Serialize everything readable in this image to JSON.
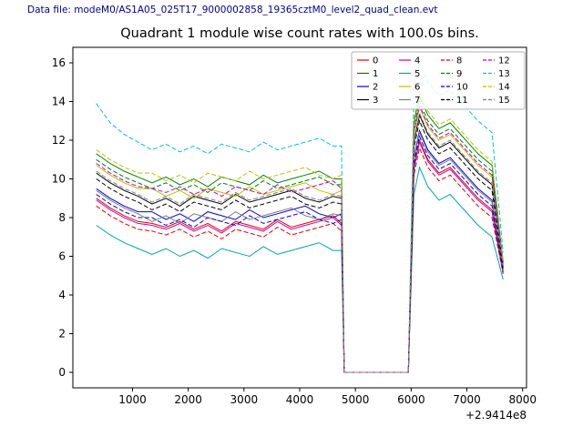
{
  "header": {
    "data_file_label": "Data file: modeM0/AS1A05_025T17_9000002858_19365cztM0_level2_quad_clean.evt",
    "color": "#00008b"
  },
  "chart_data": {
    "type": "line",
    "title": "Quadrant 1 module wise count rates with 100.0s bins.",
    "xlabel": "",
    "ylabel": "",
    "x_offset_text": "+2.9414e8",
    "xlim": [
      -70,
      8070
    ],
    "ylim": [
      -0.8,
      16.8
    ],
    "xticks": [
      1000,
      2000,
      3000,
      4000,
      5000,
      6000,
      7000,
      8000
    ],
    "yticks": [
      0,
      2,
      4,
      6,
      8,
      10,
      12,
      14,
      16
    ],
    "grid": false,
    "legend_position": "upper right",
    "legend_columns": 4,
    "x": [
      350,
      600,
      850,
      1100,
      1350,
      1600,
      1850,
      2100,
      2350,
      2600,
      2850,
      3100,
      3350,
      3600,
      3850,
      4100,
      4350,
      4600,
      4750,
      4800,
      5950,
      6050,
      6150,
      6300,
      6500,
      6700,
      6950,
      7200,
      7450,
      7650
    ],
    "series": [
      {
        "name": "0",
        "color": "#e60000",
        "dash": false,
        "values": [
          9.0,
          8.5,
          8.1,
          7.8,
          7.7,
          7.5,
          7.8,
          7.4,
          7.7,
          7.3,
          7.8,
          7.6,
          7.4,
          7.9,
          7.5,
          7.7,
          7.9,
          8.1,
          7.7,
          0,
          0,
          10.6,
          12.0,
          11.0,
          10.3,
          10.6,
          9.8,
          9.0,
          8.4,
          5.2
        ]
      },
      {
        "name": "1",
        "color": "#007f00",
        "dash": false,
        "values": [
          11.3,
          10.8,
          10.4,
          10.1,
          9.8,
          10.1,
          9.7,
          10.0,
          9.6,
          10.1,
          9.9,
          9.7,
          10.2,
          9.8,
          10.0,
          10.2,
          10.4,
          10.0,
          10.0,
          0,
          0,
          12.9,
          14.3,
          13.3,
          12.6,
          12.9,
          12.1,
          11.3,
          10.7,
          5.7
        ]
      },
      {
        "name": "2",
        "color": "#0000dd",
        "dash": false,
        "values": [
          9.5,
          9.0,
          8.6,
          8.3,
          8.3,
          7.9,
          8.2,
          7.8,
          8.3,
          8.1,
          7.9,
          8.4,
          8.0,
          8.2,
          8.4,
          8.6,
          8.2,
          8.0,
          8.2,
          0,
          0,
          11.1,
          12.5,
          11.5,
          10.8,
          11.1,
          10.3,
          9.5,
          8.9,
          5.3
        ]
      },
      {
        "name": "3",
        "color": "#000000",
        "dash": false,
        "values": [
          10.3,
          9.8,
          9.4,
          9.1,
          8.7,
          9.0,
          8.6,
          9.1,
          8.9,
          8.7,
          9.2,
          8.8,
          9.0,
          9.2,
          9.4,
          9.0,
          8.8,
          9.1,
          9.0,
          0,
          0,
          11.9,
          13.3,
          12.3,
          11.6,
          11.9,
          11.1,
          10.3,
          9.7,
          5.5
        ]
      },
      {
        "name": "4",
        "color": "#bf00bf",
        "dash": false,
        "values": [
          8.9,
          8.4,
          8.0,
          7.7,
          7.6,
          7.4,
          7.7,
          7.3,
          7.6,
          7.2,
          7.7,
          7.5,
          7.3,
          7.8,
          7.4,
          7.6,
          7.8,
          8.0,
          7.6,
          0,
          0,
          10.5,
          11.9,
          10.9,
          10.2,
          10.5,
          9.7,
          8.9,
          8.3,
          5.1
        ]
      },
      {
        "name": "5",
        "color": "#00a5a5",
        "dash": false,
        "values": [
          7.6,
          7.1,
          6.7,
          6.4,
          6.1,
          6.4,
          6.0,
          6.3,
          5.9,
          6.4,
          6.2,
          6.0,
          6.5,
          6.1,
          6.3,
          6.5,
          6.7,
          6.3,
          6.3,
          0,
          0,
          9.2,
          10.6,
          9.6,
          8.9,
          9.2,
          8.4,
          7.6,
          7.0,
          4.8
        ]
      },
      {
        "name": "6",
        "color": "#bfbf00",
        "dash": false,
        "values": [
          10.7,
          10.2,
          9.8,
          9.5,
          9.5,
          9.1,
          9.4,
          9.0,
          9.5,
          9.3,
          9.1,
          9.6,
          9.2,
          9.4,
          9.6,
          9.8,
          9.4,
          9.2,
          9.4,
          0,
          0,
          12.3,
          13.7,
          12.7,
          12.0,
          12.3,
          11.5,
          10.7,
          10.1,
          5.6
        ]
      },
      {
        "name": "7",
        "color": "#7f7f7f",
        "dash": false,
        "values": [
          9.4,
          8.9,
          8.5,
          8.2,
          7.8,
          8.1,
          7.7,
          8.2,
          8.0,
          7.8,
          8.3,
          7.9,
          8.1,
          8.3,
          8.5,
          8.1,
          7.9,
          8.2,
          8.1,
          0,
          0,
          11.0,
          12.4,
          11.4,
          10.7,
          11.0,
          10.2,
          9.4,
          8.8,
          5.3
        ]
      },
      {
        "name": "8",
        "color": "#e60000",
        "dash": true,
        "values": [
          8.6,
          8.1,
          7.7,
          7.4,
          7.3,
          7.1,
          7.4,
          7.0,
          7.3,
          6.9,
          7.4,
          7.2,
          7.0,
          7.5,
          7.1,
          7.3,
          7.5,
          7.7,
          7.3,
          0,
          0,
          10.2,
          11.6,
          10.6,
          9.9,
          10.2,
          9.4,
          8.6,
          8.0,
          5.1
        ]
      },
      {
        "name": "9",
        "color": "#007f00",
        "dash": true,
        "values": [
          11.0,
          10.5,
          10.1,
          9.8,
          9.5,
          9.8,
          9.4,
          9.7,
          9.3,
          9.8,
          9.6,
          9.4,
          9.9,
          9.5,
          9.7,
          9.9,
          10.1,
          9.7,
          9.7,
          0,
          0,
          12.6,
          14.0,
          13.0,
          12.3,
          12.6,
          11.8,
          11.0,
          10.4,
          5.7
        ]
      },
      {
        "name": "10",
        "color": "#0000dd",
        "dash": true,
        "values": [
          9.2,
          8.7,
          8.3,
          8.0,
          8.0,
          7.6,
          7.9,
          7.5,
          8.0,
          7.8,
          7.6,
          8.1,
          7.7,
          7.9,
          8.1,
          8.3,
          7.9,
          7.7,
          7.9,
          0,
          0,
          10.8,
          12.2,
          11.2,
          10.5,
          10.8,
          10.0,
          9.2,
          8.6,
          5.2
        ]
      },
      {
        "name": "11",
        "color": "#000000",
        "dash": true,
        "values": [
          10.0,
          9.5,
          9.1,
          8.8,
          8.4,
          8.7,
          8.3,
          8.8,
          8.6,
          8.4,
          8.9,
          8.5,
          8.7,
          8.9,
          9.1,
          8.7,
          8.5,
          8.8,
          8.7,
          0,
          0,
          11.6,
          13.0,
          12.0,
          11.3,
          11.6,
          10.8,
          10.0,
          9.4,
          5.4
        ]
      },
      {
        "name": "12",
        "color": "#bf00bf",
        "dash": true,
        "values": [
          10.8,
          10.3,
          9.9,
          9.6,
          9.5,
          9.3,
          9.6,
          9.2,
          9.5,
          9.1,
          9.6,
          9.4,
          9.2,
          9.7,
          9.3,
          9.5,
          9.7,
          9.9,
          9.5,
          0,
          0,
          12.4,
          13.8,
          12.8,
          12.1,
          12.4,
          11.6,
          10.8,
          10.2,
          5.6
        ]
      },
      {
        "name": "13",
        "color": "#00c3cc",
        "dash": true,
        "values": [
          13.9,
          12.9,
          12.3,
          11.9,
          11.5,
          11.8,
          11.4,
          11.7,
          11.3,
          11.8,
          11.6,
          11.4,
          11.9,
          11.5,
          11.7,
          11.9,
          12.1,
          11.7,
          11.7,
          0,
          0,
          14.6,
          16.0,
          15.0,
          14.3,
          14.6,
          13.8,
          13.0,
          12.4,
          6.2
        ]
      },
      {
        "name": "14",
        "color": "#bfbf00",
        "dash": true,
        "values": [
          11.5,
          11.0,
          10.6,
          10.3,
          10.3,
          9.9,
          10.2,
          9.8,
          10.3,
          10.1,
          9.9,
          10.4,
          10.0,
          10.2,
          10.4,
          10.6,
          10.2,
          10.0,
          10.2,
          0,
          0,
          13.1,
          14.5,
          13.5,
          12.8,
          13.1,
          12.3,
          11.5,
          10.9,
          5.8
        ]
      },
      {
        "name": "15",
        "color": "#7f7f7f",
        "dash": true,
        "values": [
          10.4,
          9.9,
          9.5,
          9.2,
          8.8,
          9.1,
          8.7,
          9.2,
          9.0,
          8.8,
          9.3,
          8.9,
          9.1,
          9.3,
          9.5,
          9.1,
          8.9,
          9.2,
          9.1,
          0,
          0,
          12.0,
          13.4,
          12.4,
          11.7,
          12.0,
          11.2,
          10.4,
          9.8,
          5.5
        ]
      }
    ]
  }
}
